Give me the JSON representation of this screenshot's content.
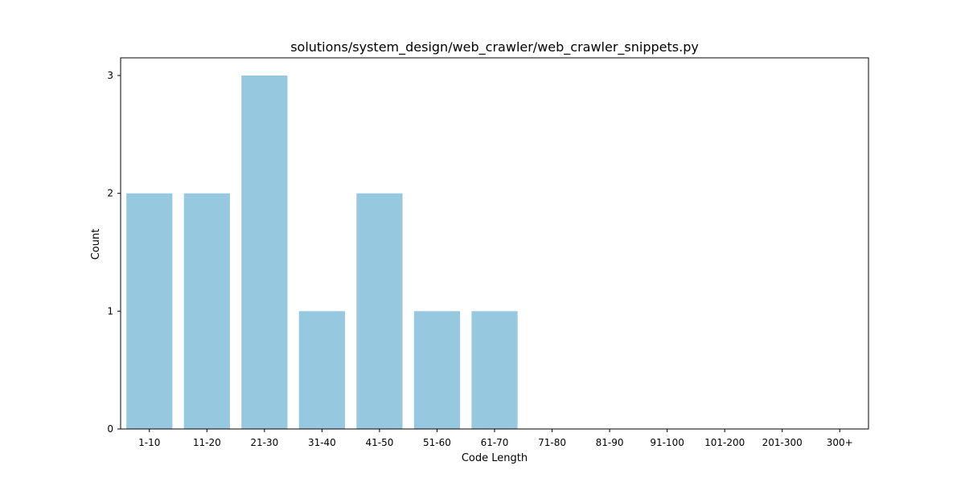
{
  "chart_data": {
    "type": "bar",
    "title": "solutions/system_design/web_crawler/web_crawler_snippets.py",
    "xlabel": "Code Length",
    "ylabel": "Count",
    "categories": [
      "1-10",
      "11-20",
      "21-30",
      "31-40",
      "41-50",
      "51-60",
      "61-70",
      "71-80",
      "81-90",
      "91-100",
      "101-200",
      "201-300",
      "300+"
    ],
    "values": [
      2,
      2,
      3,
      1,
      2,
      1,
      1,
      0,
      0,
      0,
      0,
      0,
      0
    ],
    "ylim": [
      0,
      3.15
    ],
    "yticks": [
      0,
      1,
      2,
      3
    ],
    "grid": false,
    "legend": "none",
    "bar_color": "#96c9df",
    "axis_color": "#000000"
  }
}
